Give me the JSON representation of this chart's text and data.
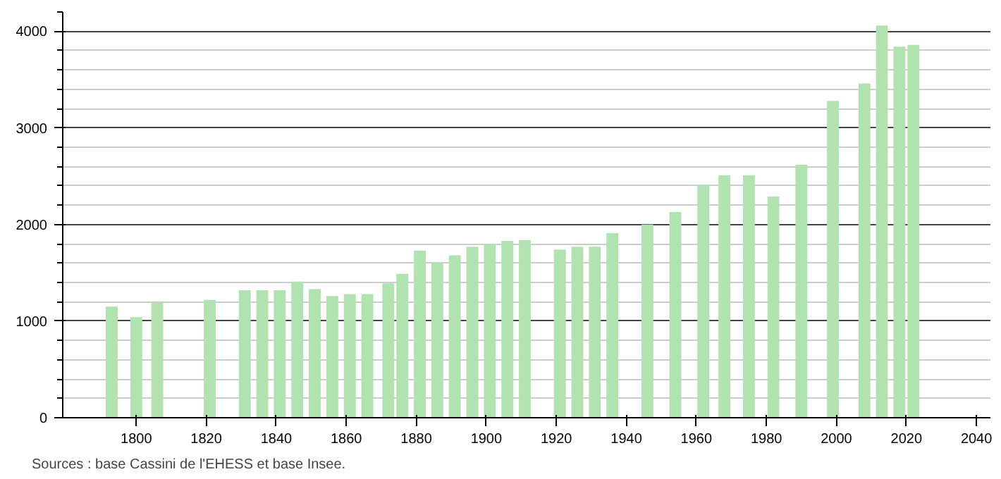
{
  "chart_data": {
    "type": "bar",
    "x": [
      1793,
      1800,
      1806,
      1821,
      1831,
      1836,
      1841,
      1846,
      1851,
      1856,
      1861,
      1866,
      1872,
      1876,
      1881,
      1886,
      1891,
      1896,
      1901,
      1906,
      1911,
      1921,
      1926,
      1931,
      1936,
      1946,
      1954,
      1962,
      1968,
      1975,
      1982,
      1990,
      1999,
      2008,
      2013,
      2018,
      2022
    ],
    "values": [
      1150,
      1040,
      1190,
      1220,
      1320,
      1320,
      1320,
      1410,
      1330,
      1260,
      1280,
      1280,
      1390,
      1490,
      1730,
      1610,
      1680,
      1770,
      1800,
      1830,
      1840,
      1740,
      1770,
      1770,
      1910,
      2000,
      2130,
      2410,
      2510,
      2510,
      2290,
      2620,
      3280,
      3460,
      4060,
      3840,
      3860
    ],
    "color": "#b0e3b0",
    "xlim": [
      1779,
      2044
    ],
    "xticks": [
      1800,
      1820,
      1840,
      1860,
      1880,
      1900,
      1920,
      1940,
      1960,
      1980,
      2000,
      2020,
      2040
    ],
    "ylim": [
      0,
      4200
    ],
    "yticks": [
      0,
      1000,
      2000,
      3000,
      4000
    ],
    "grid": "y",
    "annotations": [
      "Sources : base Cassini de l'EHESS et base Insee."
    ]
  }
}
